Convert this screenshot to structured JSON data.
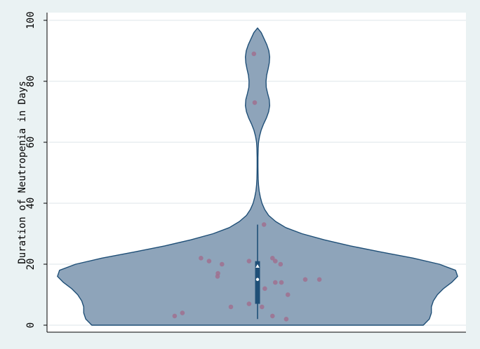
{
  "chart_data": {
    "type": "violin",
    "title": "",
    "xlabel": "",
    "ylabel": "Duration of Neutropenia in Days",
    "ylim": [
      0,
      100
    ],
    "y_ticks": [
      0,
      20,
      40,
      60,
      80,
      100
    ],
    "y_tick_labels": [
      "0",
      "20",
      "40",
      "60",
      "80",
      "100"
    ],
    "grid": true,
    "colors": {
      "background": "#eaf2f3",
      "plot_area": "#ffffff",
      "grid": "#e3ebed",
      "violin_fill": "#8ea4ba",
      "violin_stroke": "#1f4f77",
      "box": "#1f4f77",
      "points": "#a0718f",
      "median_marker": "#ffffff",
      "mean_marker": "#ffffff"
    },
    "summary": {
      "min": 2,
      "q1": 7,
      "median": 15,
      "q3": 21,
      "max": 33,
      "mean": 19.3
    },
    "density": [
      [
        0,
        0.82
      ],
      [
        2,
        0.85
      ],
      [
        4,
        0.86
      ],
      [
        6,
        0.86
      ],
      [
        8,
        0.87
      ],
      [
        10,
        0.89
      ],
      [
        12,
        0.92
      ],
      [
        14,
        0.96
      ],
      [
        16,
        0.99
      ],
      [
        18,
        0.98
      ],
      [
        20,
        0.9
      ],
      [
        22,
        0.77
      ],
      [
        24,
        0.61
      ],
      [
        26,
        0.46
      ],
      [
        28,
        0.33
      ],
      [
        30,
        0.22
      ],
      [
        32,
        0.14
      ],
      [
        34,
        0.09
      ],
      [
        36,
        0.055
      ],
      [
        38,
        0.035
      ],
      [
        40,
        0.022
      ],
      [
        42,
        0.014
      ],
      [
        44,
        0.008
      ],
      [
        46,
        0.005
      ],
      [
        48,
        0.003
      ],
      [
        50,
        0.0025
      ],
      [
        52,
        0.002
      ],
      [
        55,
        0.002
      ],
      [
        58,
        0.003
      ],
      [
        60,
        0.005
      ],
      [
        62,
        0.01
      ],
      [
        64,
        0.018
      ],
      [
        66,
        0.03
      ],
      [
        68,
        0.044
      ],
      [
        70,
        0.055
      ],
      [
        72,
        0.06
      ],
      [
        74,
        0.058
      ],
      [
        76,
        0.05
      ],
      [
        78,
        0.043
      ],
      [
        80,
        0.042
      ],
      [
        82,
        0.045
      ],
      [
        84,
        0.052
      ],
      [
        86,
        0.058
      ],
      [
        88,
        0.06
      ],
      [
        90,
        0.056
      ],
      [
        92,
        0.046
      ],
      [
        94,
        0.032
      ],
      [
        96,
        0.018
      ],
      [
        97.5,
        0
      ]
    ],
    "points": [
      {
        "x": -0.205,
        "y": 3
      },
      {
        "x": -0.186,
        "y": 4
      },
      {
        "x": -0.14,
        "y": 22
      },
      {
        "x": -0.12,
        "y": 21
      },
      {
        "x": -0.098,
        "y": 17
      },
      {
        "x": -0.099,
        "y": 16
      },
      {
        "x": -0.088,
        "y": 20
      },
      {
        "x": -0.066,
        "y": 6
      },
      {
        "x": -0.021,
        "y": 21
      },
      {
        "x": -0.021,
        "y": 7
      },
      {
        "x": 0.011,
        "y": 6
      },
      {
        "x": 0.018,
        "y": 12
      },
      {
        "x": 0.037,
        "y": 22
      },
      {
        "x": 0.044,
        "y": 21
      },
      {
        "x": 0.044,
        "y": 14
      },
      {
        "x": 0.057,
        "y": 20
      },
      {
        "x": 0.059,
        "y": 14
      },
      {
        "x": 0.075,
        "y": 10
      },
      {
        "x": 0.037,
        "y": 3
      },
      {
        "x": 0.071,
        "y": 2
      },
      {
        "x": 0.118,
        "y": 15
      },
      {
        "x": 0.153,
        "y": 15
      },
      {
        "x": 0.016,
        "y": 33
      },
      {
        "x": -0.007,
        "y": 73
      },
      {
        "x": -0.009,
        "y": 89
      }
    ]
  }
}
